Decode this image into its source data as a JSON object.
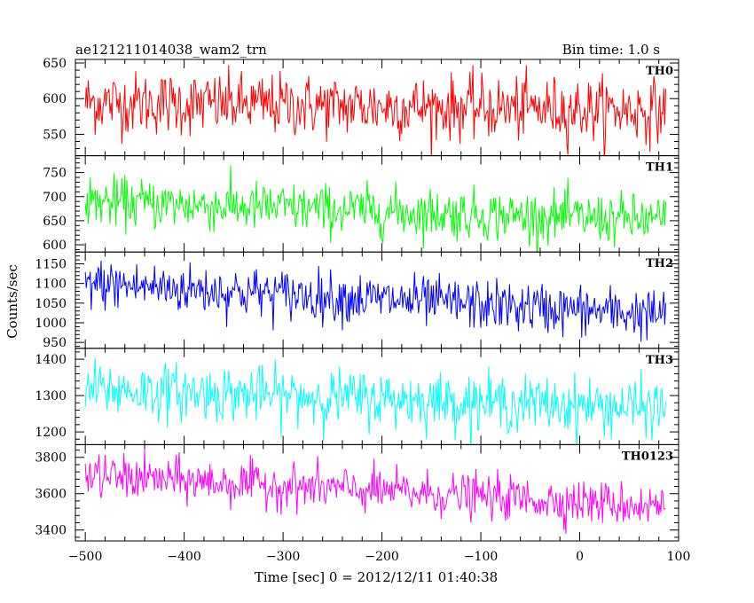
{
  "chart_data": {
    "type": "line",
    "title_left": "ae121211014038_wam2_trn",
    "title_right": "Bin time: 1.0 s",
    "xlabel": "Time [sec] 0 = 2012/12/11 01:40:38",
    "ylabel": "Counts/sec",
    "xlim": [
      -510,
      100
    ],
    "x_data_range": [
      -500,
      87
    ],
    "x_ticks": [
      -500,
      -400,
      -300,
      -200,
      -100,
      0,
      100
    ],
    "bin_seconds": 1.0,
    "grid": false,
    "panels": [
      {
        "name": "TH0",
        "color": "#ff0000",
        "ylim": [
          520,
          655
        ],
        "yticks": [
          550,
          600,
          650
        ],
        "trend_start": 595,
        "trend_end": 583,
        "noise_sd": 22
      },
      {
        "name": "TH1",
        "color": "#00ff00",
        "ylim": [
          585,
          785
        ],
        "yticks": [
          600,
          650,
          700,
          750
        ],
        "trend_start": 690,
        "trend_end": 650,
        "noise_sd": 26
      },
      {
        "name": "TH2",
        "color": "#0000ff",
        "ylim": [
          935,
          1180
        ],
        "yticks": [
          950,
          1000,
          1050,
          1100,
          1150
        ],
        "trend_start": 1100,
        "trend_end": 1020,
        "noise_sd": 32
      },
      {
        "name": "TH3",
        "color": "#00ffff",
        "ylim": [
          1165,
          1430
        ],
        "yticks": [
          1200,
          1300,
          1400
        ],
        "trend_start": 1318,
        "trend_end": 1265,
        "noise_sd": 38
      },
      {
        "name": "TH0123",
        "color": "#ff00ff",
        "ylim": [
          3340,
          3870
        ],
        "yticks": [
          3400,
          3600,
          3800
        ],
        "trend_start": 3700,
        "trend_end": 3530,
        "noise_sd": 60
      }
    ]
  }
}
